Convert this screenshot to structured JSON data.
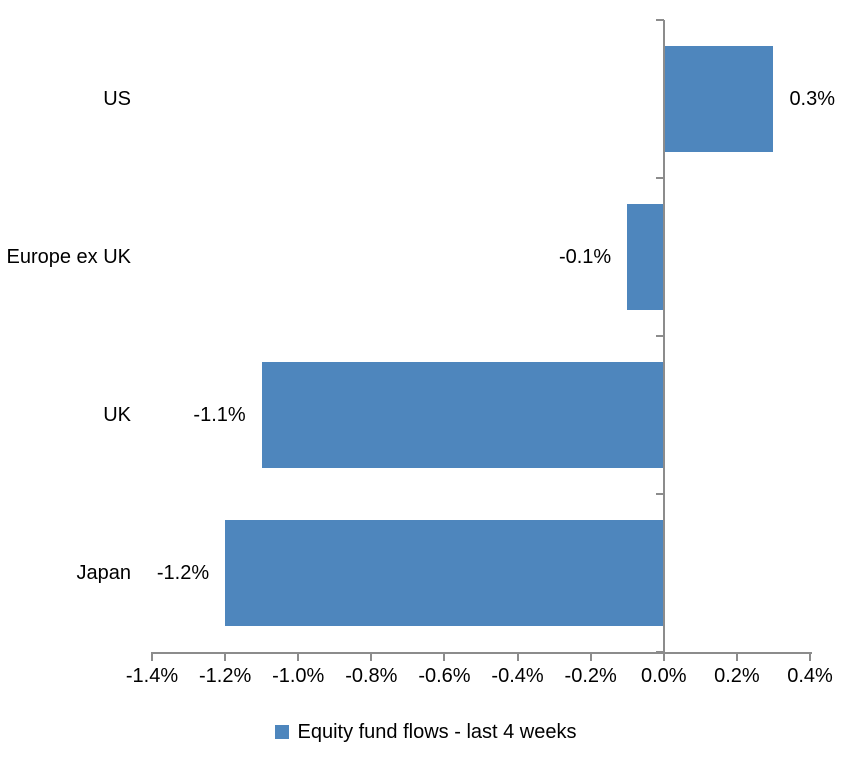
{
  "chart_data": {
    "type": "bar",
    "orientation": "horizontal",
    "title": "",
    "xlabel": "",
    "ylabel": "",
    "categories": [
      "US",
      "Europe ex UK",
      "UK",
      "Japan"
    ],
    "series": [
      {
        "name": "Equity fund flows - last 4 weeks",
        "values": [
          0.3,
          -0.1,
          -1.1,
          -1.2
        ],
        "data_labels": [
          "0.3%",
          "-0.1%",
          "-1.1%",
          "-1.2%"
        ]
      }
    ],
    "xlim": [
      -1.4,
      0.4
    ],
    "x_ticks": [
      -1.4,
      -1.2,
      -1.0,
      -0.8,
      -0.6,
      -0.4,
      -0.2,
      0.0,
      0.2,
      0.4
    ],
    "x_tick_labels": [
      "-1.4%",
      "-1.2%",
      "-1.0%",
      "-0.8%",
      "-0.6%",
      "-0.4%",
      "-0.2%",
      "0.0%",
      "0.2%",
      "0.4%"
    ],
    "grid": false,
    "legend_position": "bottom",
    "colors": {
      "bar": "#4E86BD",
      "axis": "#8C8C8C",
      "text": "#000000",
      "background": "#FFFFFF"
    }
  },
  "legend": {
    "label": "Equity fund flows - last 4 weeks"
  }
}
